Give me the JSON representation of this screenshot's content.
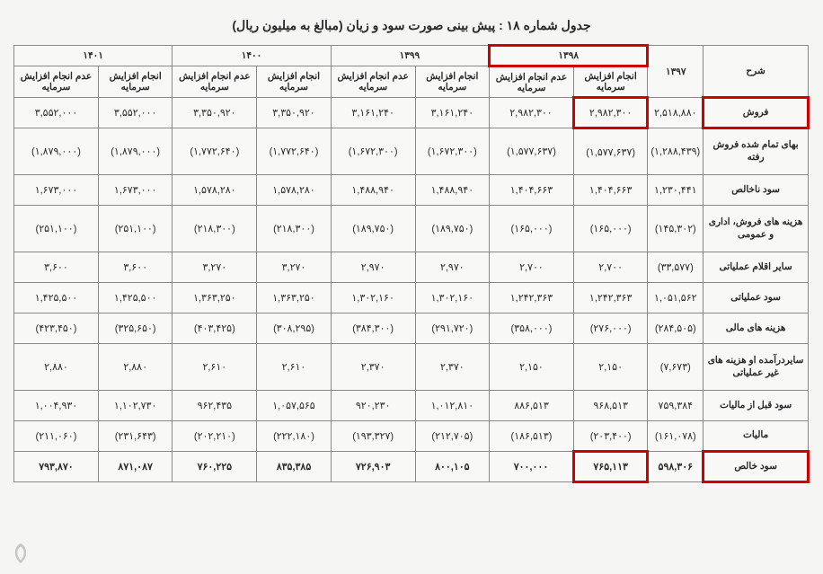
{
  "title": "جدول شماره ۱۸ : پیش بینی صورت سود و زیان (مبالغ به میلیون ریال)",
  "header": {
    "desc": "شرح",
    "y1397": "۱۳۹۷",
    "y1398": "۱۳۹۸",
    "y1399": "۱۳۹۹",
    "y1400": "۱۴۰۰",
    "y1401": "۱۴۰۱",
    "sub_inc": "انجام افزایش سرمایه",
    "sub_noinc": "عدم انجام افزایش سرمایه"
  },
  "rows": [
    {
      "label": "فروش",
      "y1397": "۲,۵۱۸,۸۸۰",
      "y1398a": "۲,۹۸۲,۳۰۰",
      "y1398b": "۲,۹۸۲,۳۰۰",
      "y1399a": "۳,۱۶۱,۲۴۰",
      "y1399b": "۳,۱۶۱,۲۴۰",
      "y1400a": "۳,۳۵۰,۹۲۰",
      "y1400b": "۳,۳۵۰,۹۲۰",
      "y1401a": "۳,۵۵۲,۰۰۰",
      "y1401b": "۳,۵۵۲,۰۰۰",
      "hl_label": true,
      "hl_98a": true
    },
    {
      "label": "بهای تمام شده فروش رفته",
      "y1397": "(۱,۲۸۸,۴۳۹)",
      "y1398a": "(۱,۵۷۷,۶۳۷)",
      "y1398b": "(۱,۵۷۷,۶۳۷)",
      "y1399a": "(۱,۶۷۲,۳۰۰)",
      "y1399b": "(۱,۶۷۲,۳۰۰)",
      "y1400a": "(۱,۷۷۲,۶۴۰)",
      "y1400b": "(۱,۷۷۲,۶۴۰)",
      "y1401a": "(۱,۸۷۹,۰۰۰)",
      "y1401b": "(۱,۸۷۹,۰۰۰)",
      "tall": true
    },
    {
      "label": "سود ناخالص",
      "y1397": "۱,۲۳۰,۴۴۱",
      "y1398a": "۱,۴۰۴,۶۶۳",
      "y1398b": "۱,۴۰۴,۶۶۳",
      "y1399a": "۱,۴۸۸,۹۴۰",
      "y1399b": "۱,۴۸۸,۹۴۰",
      "y1400a": "۱,۵۷۸,۲۸۰",
      "y1400b": "۱,۵۷۸,۲۸۰",
      "y1401a": "۱,۶۷۳,۰۰۰",
      "y1401b": "۱,۶۷۳,۰۰۰"
    },
    {
      "label": "هزینه های فروش، اداری و عمومی",
      "y1397": "(۱۴۵,۳۰۲)",
      "y1398a": "(۱۶۵,۰۰۰)",
      "y1398b": "(۱۶۵,۰۰۰)",
      "y1399a": "(۱۸۹,۷۵۰)",
      "y1399b": "(۱۸۹,۷۵۰)",
      "y1400a": "(۲۱۸,۳۰۰)",
      "y1400b": "(۲۱۸,۳۰۰)",
      "y1401a": "(۲۵۱,۱۰۰)",
      "y1401b": "(۲۵۱,۱۰۰)",
      "tall": true
    },
    {
      "label": "سایر اقلام عملیاتی",
      "y1397": "(۳۳,۵۷۷)",
      "y1398a": "۲,۷۰۰",
      "y1398b": "۲,۷۰۰",
      "y1399a": "۲,۹۷۰",
      "y1399b": "۲,۹۷۰",
      "y1400a": "۳,۲۷۰",
      "y1400b": "۳,۲۷۰",
      "y1401a": "۳,۶۰۰",
      "y1401b": "۳,۶۰۰"
    },
    {
      "label": "سود عملیاتی",
      "y1397": "۱,۰۵۱,۵۶۲",
      "y1398a": "۱,۲۴۲,۳۶۳",
      "y1398b": "۱,۲۴۲,۳۶۳",
      "y1399a": "۱,۳۰۲,۱۶۰",
      "y1399b": "۱,۳۰۲,۱۶۰",
      "y1400a": "۱,۳۶۳,۲۵۰",
      "y1400b": "۱,۳۶۳,۲۵۰",
      "y1401a": "۱,۴۲۵,۵۰۰",
      "y1401b": "۱,۴۲۵,۵۰۰"
    },
    {
      "label": "هزینه های مالی",
      "y1397": "(۲۸۴,۵۰۵)",
      "y1398a": "(۲۷۶,۰۰۰)",
      "y1398b": "(۳۵۸,۰۰۰)",
      "y1399a": "(۲۹۱,۷۲۰)",
      "y1399b": "(۳۸۴,۳۰۰)",
      "y1400a": "(۳۰۸,۲۹۵)",
      "y1400b": "(۴۰۳,۴۲۵)",
      "y1401a": "(۳۲۵,۶۵۰)",
      "y1401b": "(۴۲۳,۴۵۰)"
    },
    {
      "label": "سایردرآمده او هزینه های غیر عملیاتی",
      "y1397": "(۷,۶۷۳)",
      "y1398a": "۲,۱۵۰",
      "y1398b": "۲,۱۵۰",
      "y1399a": "۲,۳۷۰",
      "y1399b": "۲,۳۷۰",
      "y1400a": "۲,۶۱۰",
      "y1400b": "۲,۶۱۰",
      "y1401a": "۲,۸۸۰",
      "y1401b": "۲,۸۸۰",
      "tall": true
    },
    {
      "label": "سود قبل از مالیات",
      "y1397": "۷۵۹,۳۸۴",
      "y1398a": "۹۶۸,۵۱۳",
      "y1398b": "۸۸۶,۵۱۳",
      "y1399a": "۱,۰۱۲,۸۱۰",
      "y1399b": "۹۲۰,۲۳۰",
      "y1400a": "۱,۰۵۷,۵۶۵",
      "y1400b": "۹۶۲,۴۳۵",
      "y1401a": "۱,۱۰۲,۷۳۰",
      "y1401b": "۱,۰۰۴,۹۳۰"
    },
    {
      "label": "مالیات",
      "y1397": "(۱۶۱,۰۷۸)",
      "y1398a": "(۲۰۳,۴۰۰)",
      "y1398b": "(۱۸۶,۵۱۳)",
      "y1399a": "(۲۱۲,۷۰۵)",
      "y1399b": "(۱۹۳,۳۲۷)",
      "y1400a": "(۲۲۲,۱۸۰)",
      "y1400b": "(۲۰۲,۲۱۰)",
      "y1401a": "(۲۳۱,۶۴۳)",
      "y1401b": "(۲۱۱,۰۶۰)"
    },
    {
      "label": "سود خالص",
      "y1397": "۵۹۸,۳۰۶",
      "y1398a": "۷۶۵,۱۱۳",
      "y1398b": "۷۰۰,۰۰۰",
      "y1399a": "۸۰۰,۱۰۵",
      "y1399b": "۷۲۶,۹۰۳",
      "y1400a": "۸۳۵,۳۸۵",
      "y1400b": "۷۶۰,۲۲۵",
      "y1401a": "۸۷۱,۰۸۷",
      "y1401b": "۷۹۳,۸۷۰",
      "bold": true,
      "hl_label": true,
      "hl_98a": true
    }
  ],
  "styling": {
    "background": "#f5f5f3",
    "border_color": "#888888",
    "text_color": "#2a2a2a",
    "highlight_border": "#d00000",
    "font_family": "Tahoma",
    "title_fontsize": 14,
    "cell_fontsize": 11,
    "row_highlight_indices_label": [
      0,
      10
    ],
    "row_highlight_indices_1398a": [
      0,
      10
    ],
    "year_header_highlight": "۱۳۹۸"
  }
}
